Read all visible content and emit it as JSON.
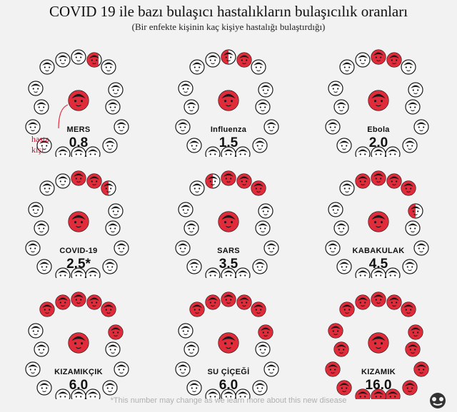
{
  "title": "COVID 19 ile bazı bulaşıcı hastalıkların bulaşıcılık oranları",
  "subtitle": "(Bir enfekte kişinin kaç kişiye hastalığı bulaştırdığı)",
  "legend_label_line1": "hasta",
  "legend_label_line2": "kişi",
  "footnote": "*This number may change as we learn more about this new disease",
  "colors": {
    "infected": "#e02b3a",
    "healthy": "#ffffff",
    "outline": "#1a1a1a",
    "background": "#f2f2f2"
  },
  "chart_data": {
    "type": "pictogram",
    "title": "COVID 19 ile bazı bulaşıcı hastalıkların bulaşıcılık oranları",
    "subtitle": "(Bir enfekte kişinin kaç kişiye hastalığı bulaştırdığı)",
    "people_per_panel": 16,
    "diseases": [
      {
        "name": "MERS",
        "value_label": "0.8",
        "value": 0.8
      },
      {
        "name": "Influenza",
        "value_label": "1.5",
        "value": 1.5
      },
      {
        "name": "Ebola",
        "value_label": "2.0",
        "value": 2.0
      },
      {
        "name": "COVID-19",
        "value_label": "2.5*",
        "value": 2.5
      },
      {
        "name": "SARS",
        "value_label": "3.5",
        "value": 3.5
      },
      {
        "name": "KABAKULAK",
        "value_label": "4.5",
        "value": 4.5
      },
      {
        "name": "KIZAMIKÇIK",
        "value_label": "6.0",
        "value": 6.0
      },
      {
        "name": "SU ÇİÇEĞİ",
        "value_label": "6.0",
        "value": 6.0
      },
      {
        "name": "KIZAMIK",
        "value_label": "16.0",
        "value": 16.0
      }
    ]
  }
}
